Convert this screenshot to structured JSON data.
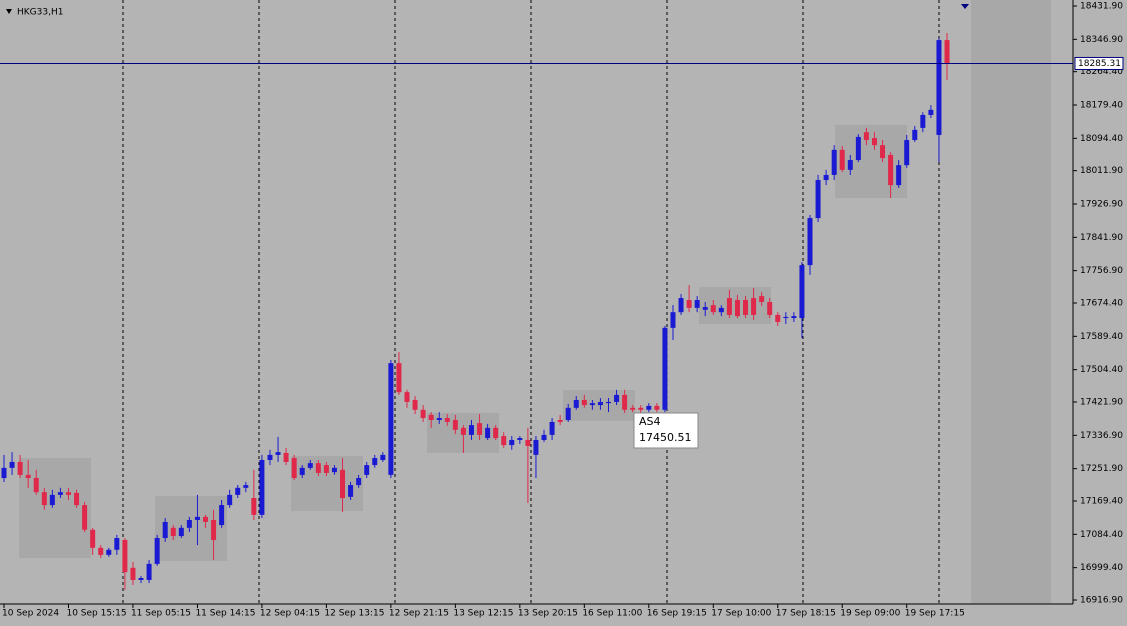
{
  "chart_data": {
    "type": "candlestick",
    "symbol": "HKG33,H1",
    "categories": [
      "10 Sep 2024",
      null,
      null,
      null,
      null,
      null,
      null,
      null,
      "10 Sep 15:15",
      null,
      null,
      null,
      null,
      null,
      null,
      null,
      "11 Sep 05:15",
      null,
      null,
      null,
      null,
      null,
      null,
      null,
      "11 Sep 14:15",
      null,
      null,
      null,
      null,
      null,
      null,
      null,
      "12 Sep 04:15",
      null,
      null,
      null,
      null,
      null,
      null,
      null,
      "12 Sep 13:15",
      null,
      null,
      null,
      null,
      null,
      null,
      null,
      "12 Sep 21:15",
      null,
      null,
      null,
      null,
      null,
      null,
      null,
      "13 Sep 12:15",
      null,
      null,
      null,
      null,
      null,
      null,
      null,
      "13 Sep 20:15",
      null,
      null,
      null,
      null,
      null,
      null,
      null,
      "16 Sep 11:00",
      null,
      null,
      null,
      null,
      null,
      null,
      null,
      "16 Sep 19:15",
      null,
      null,
      null,
      null,
      null,
      null,
      null,
      "17 Sep 10:00",
      null,
      null,
      null,
      null,
      null,
      null,
      null,
      "17 Sep 18:15",
      null,
      null,
      null,
      null,
      null,
      null,
      null,
      "19 Sep 09:00",
      null,
      null,
      null,
      null,
      null,
      null,
      null,
      "19 Sep 17:15",
      null,
      null,
      null,
      null,
      null
    ],
    "ohlc": [
      [
        17228,
        17287,
        17218,
        17254
      ],
      [
        17254,
        17294,
        17236,
        17269
      ],
      [
        17269,
        17287,
        17228,
        17236
      ],
      [
        17236,
        17274,
        17203,
        17228
      ],
      [
        17228,
        17249,
        17185,
        17192
      ],
      [
        17192,
        17203,
        17147,
        17159
      ],
      [
        17159,
        17198,
        17152,
        17185
      ],
      [
        17185,
        17203,
        17177,
        17192
      ],
      [
        17192,
        17203,
        17172,
        17185
      ],
      [
        17190,
        17198,
        17152,
        17159
      ],
      [
        17159,
        17167,
        17090,
        17096
      ],
      [
        17096,
        17101,
        17032,
        17050
      ],
      [
        17050,
        17057,
        17024,
        17032
      ],
      [
        17032,
        17050,
        17027,
        17045
      ],
      [
        17045,
        17083,
        17032,
        17075
      ],
      [
        17070,
        17075,
        16943,
        16988
      ],
      [
        16999,
        17014,
        16955,
        16968
      ],
      [
        16968,
        16978,
        16960,
        16973
      ],
      [
        16968,
        17019,
        16960,
        17009
      ],
      [
        17009,
        17083,
        17004,
        17075
      ],
      [
        17075,
        17126,
        17065,
        17116
      ],
      [
        17101,
        17108,
        17070,
        17080
      ],
      [
        17080,
        17108,
        17075,
        17101
      ],
      [
        17101,
        17129,
        17090,
        17121
      ],
      [
        17121,
        17185,
        17057,
        17129
      ],
      [
        17129,
        17134,
        17101,
        17116
      ],
      [
        17121,
        17147,
        17019,
        17070
      ],
      [
        17108,
        17172,
        17101,
        17159
      ],
      [
        17159,
        17198,
        17152,
        17185
      ],
      [
        17185,
        17210,
        17177,
        17203
      ],
      [
        17203,
        17218,
        17192,
        17210
      ],
      [
        17177,
        17249,
        17121,
        17134
      ],
      [
        17134,
        17287,
        17126,
        17274
      ],
      [
        17274,
        17300,
        17261,
        17287
      ],
      [
        17287,
        17333,
        17269,
        17294
      ],
      [
        17292,
        17305,
        17261,
        17269
      ],
      [
        17279,
        17287,
        17223,
        17228
      ],
      [
        17236,
        17261,
        17228,
        17254
      ],
      [
        17254,
        17274,
        17249,
        17266
      ],
      [
        17266,
        17274,
        17233,
        17241
      ],
      [
        17261,
        17269,
        17233,
        17241
      ],
      [
        17243,
        17261,
        17236,
        17254
      ],
      [
        17249,
        17279,
        17141,
        17177
      ],
      [
        17180,
        17218,
        17172,
        17210
      ],
      [
        17210,
        17236,
        17203,
        17228
      ],
      [
        17236,
        17269,
        17228,
        17261
      ],
      [
        17261,
        17287,
        17254,
        17279
      ],
      [
        17274,
        17294,
        17269,
        17287
      ],
      [
        17236,
        17529,
        17228,
        17521
      ],
      [
        17521,
        17549,
        17440,
        17447
      ],
      [
        17447,
        17453,
        17407,
        17422
      ],
      [
        17427,
        17437,
        17391,
        17402
      ],
      [
        17402,
        17414,
        17371,
        17381
      ],
      [
        17389,
        17396,
        17356,
        17376
      ],
      [
        17376,
        17396,
        17366,
        17381
      ],
      [
        17381,
        17391,
        17361,
        17371
      ],
      [
        17376,
        17389,
        17340,
        17351
      ],
      [
        17356,
        17363,
        17292,
        17338
      ],
      [
        17338,
        17376,
        17325,
        17363
      ],
      [
        17368,
        17391,
        17325,
        17338
      ],
      [
        17330,
        17366,
        17325,
        17356
      ],
      [
        17356,
        17363,
        17325,
        17330
      ],
      [
        17335,
        17345,
        17305,
        17312
      ],
      [
        17312,
        17335,
        17300,
        17325
      ],
      [
        17325,
        17335,
        17315,
        17330
      ],
      [
        17325,
        17356,
        17164,
        17310
      ],
      [
        17287,
        17335,
        17228,
        17325
      ],
      [
        17325,
        17351,
        17320,
        17338
      ],
      [
        17338,
        17381,
        17325,
        17371
      ],
      [
        17376,
        17389,
        17363,
        17371
      ],
      [
        17376,
        17417,
        17371,
        17407
      ],
      [
        17407,
        17437,
        17402,
        17427
      ],
      [
        17427,
        17440,
        17407,
        17414
      ],
      [
        17414,
        17427,
        17402,
        17419
      ],
      [
        17414,
        17432,
        17402,
        17422
      ],
      [
        17419,
        17432,
        17396,
        17422
      ],
      [
        17422,
        17453,
        17414,
        17440
      ],
      [
        17440,
        17453,
        17394,
        17402
      ],
      [
        17407,
        17414,
        17396,
        17402
      ],
      [
        17407,
        17414,
        17394,
        17402
      ],
      [
        17402,
        17419,
        17396,
        17412
      ],
      [
        17412,
        17419,
        17396,
        17402
      ],
      [
        17402,
        17616,
        17396,
        17611
      ],
      [
        17611,
        17669,
        17580,
        17651
      ],
      [
        17651,
        17697,
        17644,
        17687
      ],
      [
        17682,
        17720,
        17651,
        17662
      ],
      [
        17662,
        17692,
        17651,
        17682
      ],
      [
        17657,
        17677,
        17641,
        17664
      ],
      [
        17669,
        17682,
        17644,
        17651
      ],
      [
        17651,
        17669,
        17641,
        17662
      ],
      [
        17687,
        17708,
        17636,
        17644
      ],
      [
        17682,
        17695,
        17636,
        17641
      ],
      [
        17682,
        17692,
        17636,
        17644
      ],
      [
        17687,
        17713,
        17631,
        17644
      ],
      [
        17692,
        17702,
        17667,
        17677
      ],
      [
        17677,
        17687,
        17636,
        17644
      ],
      [
        17644,
        17651,
        17616,
        17626
      ],
      [
        17636,
        17651,
        17621,
        17639
      ],
      [
        17636,
        17651,
        17626,
        17641
      ],
      [
        17636,
        17779,
        17585,
        17771
      ],
      [
        17771,
        17899,
        17746,
        17891
      ],
      [
        17891,
        18001,
        17881,
        17988
      ],
      [
        17988,
        18014,
        17975,
        18001
      ],
      [
        18001,
        18077,
        17988,
        18065
      ],
      [
        18065,
        18075,
        18008,
        18014
      ],
      [
        18014,
        18052,
        18001,
        18039
      ],
      [
        18039,
        18105,
        18034,
        18098
      ],
      [
        18110,
        18121,
        18077,
        18090
      ],
      [
        18095,
        18110,
        18065,
        18077
      ],
      [
        18077,
        18090,
        18034,
        18044
      ],
      [
        18052,
        18059,
        17942,
        17975
      ],
      [
        17975,
        18039,
        17968,
        18026
      ],
      [
        18026,
        18103,
        18019,
        18090
      ],
      [
        18090,
        18126,
        18085,
        18116
      ],
      [
        18121,
        18161,
        18110,
        18154
      ],
      [
        18154,
        18179,
        18146,
        18167
      ],
      [
        18103,
        18350,
        18034,
        18345
      ],
      [
        18345,
        18363,
        18243,
        18285
      ]
    ],
    "up_color": "#1a1ad2",
    "down_color": "#e0284a",
    "ylim": [
      16916.9,
      18431.9
    ],
    "yticks": [
      {
        "value": 16916.9,
        "label": "16916.90"
      },
      {
        "value": 16999.4,
        "label": "16999.40"
      },
      {
        "value": 17084.4,
        "label": "17084.40"
      },
      {
        "value": 17169.4,
        "label": "17169.40"
      },
      {
        "value": 17251.9,
        "label": "17251.90"
      },
      {
        "value": 17336.9,
        "label": "17336.90"
      },
      {
        "value": 17421.9,
        "label": "17421.90"
      },
      {
        "value": 17504.4,
        "label": "17504.40"
      },
      {
        "value": 17589.4,
        "label": "17589.40"
      },
      {
        "value": 17674.4,
        "label": "17674.40"
      },
      {
        "value": 17756.9,
        "label": "17756.90"
      },
      {
        "value": 17841.9,
        "label": "17841.90"
      },
      {
        "value": 17926.9,
        "label": "17926.90"
      },
      {
        "value": 18011.9,
        "label": "18011.90"
      },
      {
        "value": 18094.4,
        "label": "18094.40"
      },
      {
        "value": 18179.4,
        "label": "18179.40"
      },
      {
        "value": 18264.4,
        "label": "18264.40"
      },
      {
        "value": 18346.9,
        "label": "18346.90"
      },
      {
        "value": 18431.9,
        "label": "18431.90"
      }
    ],
    "price_line": {
      "value": 18285.31,
      "label": "18285.31",
      "color": "#000080"
    },
    "tooltip": {
      "title": "AS4",
      "value": 17450.51
    }
  }
}
